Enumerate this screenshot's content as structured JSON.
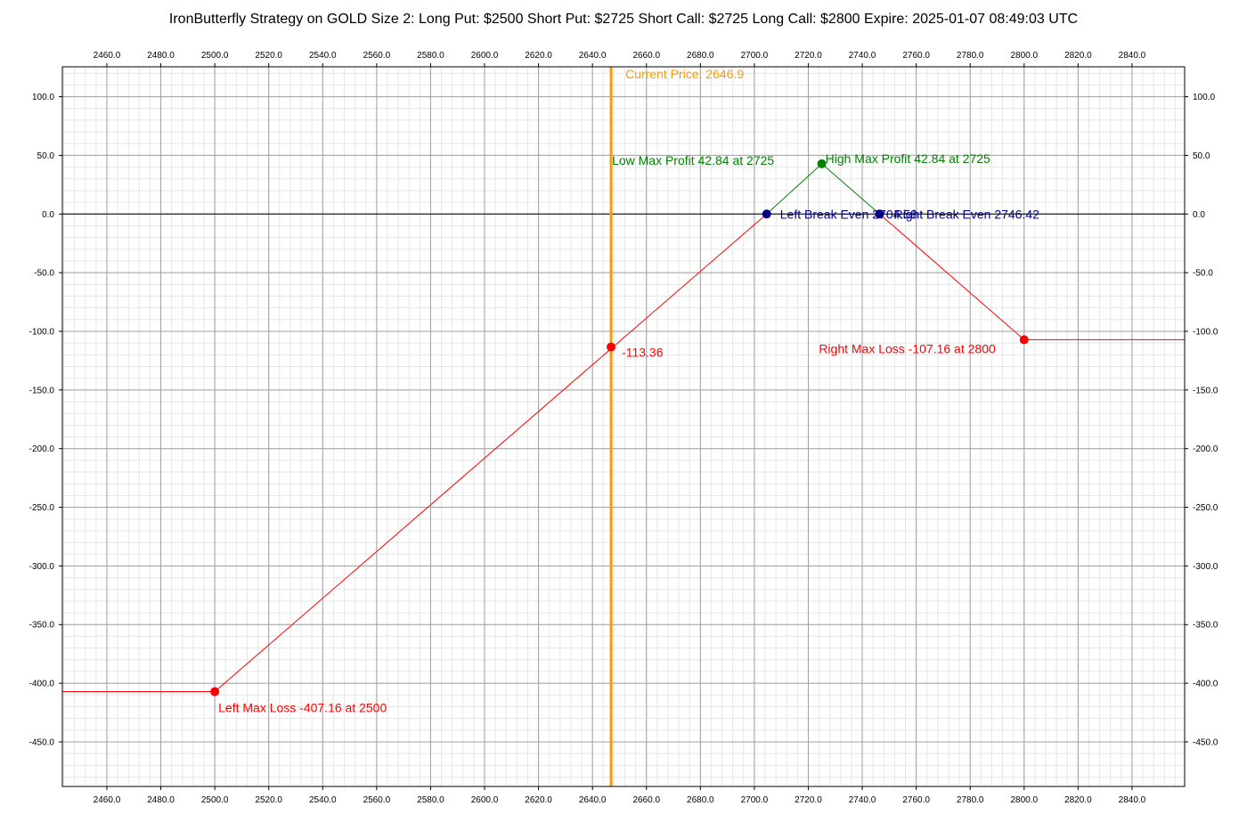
{
  "chart_data": {
    "type": "line",
    "title": "IronButterfly Strategy on GOLD Size 2:  Long Put: $2500  Short Put: $2725  Short Call: $2725  Long Call: $2800  Expire: 2025-01-07 08:49:03 UTC",
    "xlim": [
      2443.5,
      2859.5
    ],
    "ylim": [
      -488,
      125.5
    ],
    "x_ticks": [
      2460,
      2480,
      2500,
      2520,
      2540,
      2560,
      2580,
      2600,
      2620,
      2640,
      2660,
      2680,
      2700,
      2720,
      2740,
      2760,
      2780,
      2800,
      2820,
      2840
    ],
    "y_ticks": [
      100,
      50,
      0,
      -50,
      -100,
      -150,
      -200,
      -250,
      -300,
      -350,
      -400,
      -450
    ],
    "grid": true,
    "series": [
      {
        "color": "#ff0000",
        "points": [
          [
            2443.5,
            -407.16
          ],
          [
            2500,
            -407.16
          ],
          [
            2704.58,
            0
          ]
        ]
      },
      {
        "color": "#008000",
        "points": [
          [
            2704.58,
            0
          ],
          [
            2725,
            42.84
          ],
          [
            2746.42,
            0
          ]
        ]
      },
      {
        "color": "#ff0000",
        "points": [
          [
            2746.42,
            0
          ],
          [
            2800,
            -107.16
          ],
          [
            2859.5,
            -107.16
          ]
        ]
      }
    ],
    "current_price": {
      "x": 2646.9,
      "label": "Current Price: 2646.9",
      "color": "#ff9900"
    },
    "markers": [
      {
        "name": "left-max-loss",
        "x": 2500,
        "y": -407.16,
        "color": "#ff0000",
        "label": "Left Max Loss -407.16 at 2500",
        "label_color": "#ff0000"
      },
      {
        "name": "right-max-loss",
        "x": 2800,
        "y": -107.16,
        "color": "#ff0000",
        "label": "Right Max Loss -107.16 at 2800",
        "label_color": "#ff0000"
      },
      {
        "name": "current-value",
        "x": 2646.9,
        "y": -113.36,
        "color": "#ff0000",
        "label": "-113.36",
        "label_color": "#ff0000"
      },
      {
        "name": "max-profit",
        "x": 2725,
        "y": 42.84,
        "color": "#008000",
        "label": "High Max Profit 42.84 at 2725",
        "label_color": "#008000"
      },
      {
        "name": "left-break-even",
        "x": 2704.58,
        "y": 0,
        "color": "#000080",
        "label": "Left Break Even  2704.58",
        "label_color": "#000080"
      },
      {
        "name": "right-break-even",
        "x": 2746.42,
        "y": 0,
        "color": "#000080",
        "label": "Right Break Even  2746.42",
        "label_color": "#000080"
      }
    ],
    "annotations": [
      {
        "name": "low-max-profit",
        "text": "Low Max Profit 42.84 at 2725",
        "color": "#008000"
      }
    ]
  }
}
